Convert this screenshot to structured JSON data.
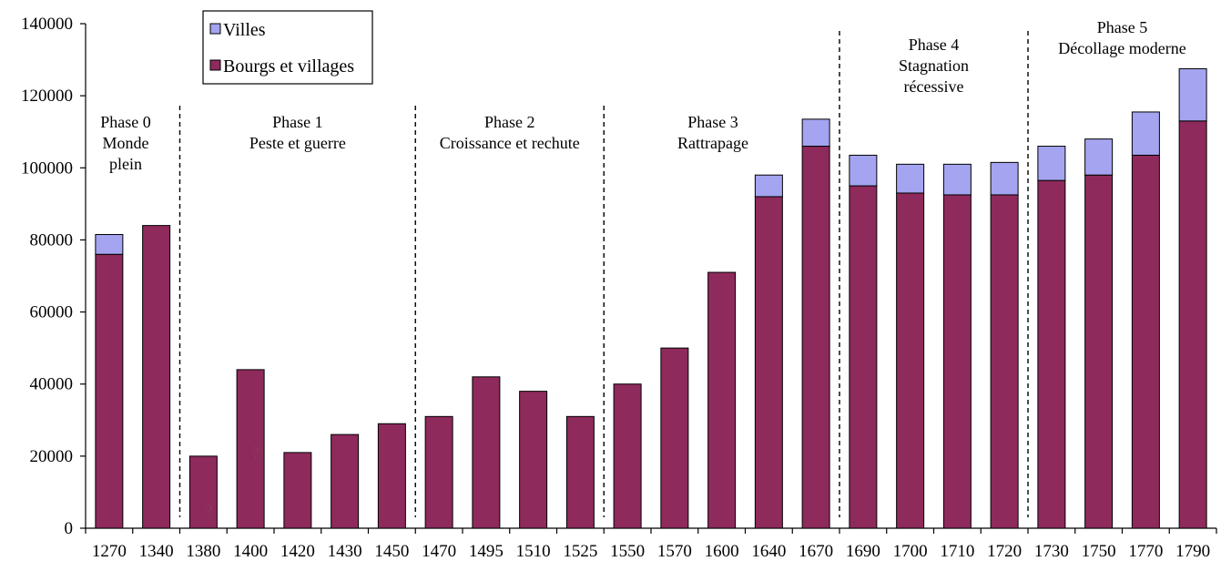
{
  "chart_data": {
    "type": "bar",
    "stacked": true,
    "categories": [
      "1270",
      "1340",
      "1380",
      "1400",
      "1420",
      "1430",
      "1450",
      "1470",
      "1495",
      "1510",
      "1525",
      "1550",
      "1570",
      "1600",
      "1640",
      "1670",
      "1690",
      "1700",
      "1710",
      "1720",
      "1730",
      "1750",
      "1770",
      "1790"
    ],
    "series": [
      {
        "name": "Bourgs et villages",
        "color": "#8e2a5c",
        "values": [
          76000,
          84000,
          20000,
          44000,
          21000,
          26000,
          29000,
          31000,
          42000,
          38000,
          31000,
          40000,
          50000,
          71000,
          92000,
          106000,
          95000,
          93000,
          92500,
          92500,
          96500,
          98000,
          103500,
          113000
        ]
      },
      {
        "name": "Villes",
        "color": "#a4a4f0",
        "values": [
          5500,
          0,
          0,
          0,
          0,
          0,
          0,
          0,
          0,
          0,
          0,
          0,
          0,
          0,
          6000,
          7500,
          8500,
          8000,
          8500,
          9000,
          9500,
          10000,
          12000,
          14500
        ]
      }
    ],
    "ylim": [
      0,
      140000
    ],
    "yticks": [
      "0",
      "20000",
      "40000",
      "60000",
      "80000",
      "100000",
      "120000",
      "140000"
    ],
    "xlabel": "",
    "ylabel": "",
    "grid": false,
    "legend_position": "top-left",
    "annotations": [
      {
        "text": "?",
        "category": "1380"
      },
      {
        "text": "?",
        "category": "1400"
      }
    ],
    "phases": [
      {
        "lines": [
          "Phase 0",
          "Monde",
          "plein"
        ]
      },
      {
        "lines": [
          "Phase 1",
          "Peste et guerre"
        ]
      },
      {
        "lines": [
          "Phase 2",
          "Croissance et rechute"
        ]
      },
      {
        "lines": [
          "Phase 3",
          "Rattrapage"
        ]
      },
      {
        "lines": [
          "Phase 4",
          "Stagnation",
          "récessive"
        ]
      },
      {
        "lines": [
          "Phase 5",
          "Décollage moderne"
        ]
      }
    ],
    "phase_boundaries_after": [
      "1340",
      "1450",
      "1525",
      "1670",
      "1720"
    ]
  }
}
